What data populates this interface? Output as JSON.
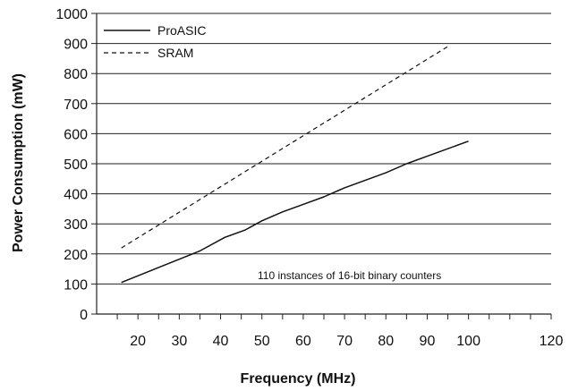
{
  "chart_data": {
    "type": "line",
    "xlabel": "Frequency (MHz)",
    "ylabel": "Power Consumption (mW)",
    "xlim": [
      10,
      120
    ],
    "ylim": [
      0,
      1000
    ],
    "x_ticks": [
      "20",
      "30",
      "40",
      "50",
      "60",
      "70",
      "80",
      "90",
      "100",
      "120"
    ],
    "x_tick_values": [
      20,
      30,
      40,
      50,
      60,
      70,
      80,
      90,
      100,
      120
    ],
    "y_ticks": [
      "0",
      "100",
      "200",
      "300",
      "400",
      "500",
      "600",
      "700",
      "800",
      "900",
      "1000"
    ],
    "grid": "horizontal",
    "legend": "top-left",
    "annotation": "110 instances of 16-bit binary counters",
    "series": [
      {
        "name": "ProASIC",
        "style": "solid",
        "x": [
          16,
          25,
          35,
          41,
          46,
          50,
          55,
          60,
          65,
          70,
          80,
          85,
          90,
          100
        ],
        "y": [
          105,
          155,
          210,
          255,
          280,
          310,
          340,
          365,
          390,
          420,
          470,
          500,
          525,
          575
        ]
      },
      {
        "name": "SRAM",
        "style": "dashed",
        "x": [
          16,
          95
        ],
        "y": [
          220,
          890
        ]
      }
    ]
  }
}
